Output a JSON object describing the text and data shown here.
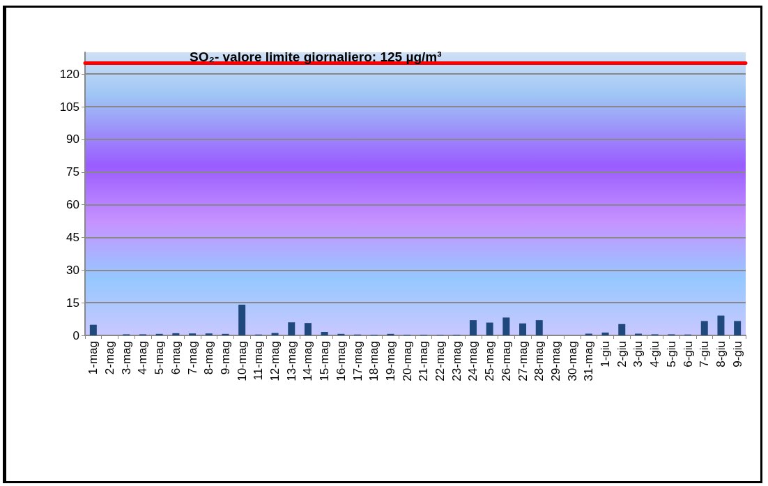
{
  "chart_data": {
    "type": "bar",
    "categories": [
      "1-mag",
      "2-mag",
      "3-mag",
      "4-mag",
      "5-mag",
      "6-mag",
      "7-mag",
      "8-mag",
      "9-mag",
      "10-mag",
      "11-mag",
      "12-mag",
      "13-mag",
      "14-mag",
      "15-mag",
      "16-mag",
      "17-mag",
      "18-mag",
      "19-mag",
      "20-mag",
      "21-mag",
      "22-mag",
      "23-mag",
      "24-mag",
      "25-mag",
      "26-mag",
      "27-mag",
      "28-mag",
      "29-mag",
      "30-mag",
      "31-mag",
      "1-giu",
      "2-giu",
      "3-giu",
      "4-giu",
      "5-giu",
      "6-giu",
      "7-giu",
      "8-giu",
      "9-giu"
    ],
    "series": [
      {
        "color": "#1f497d",
        "values": [
          4.9,
          0,
          0.5,
          0.5,
          0.7,
          1.0,
          0.9,
          0.9,
          0.7,
          14.1,
          0.4,
          1.1,
          6.0,
          5.7,
          1.6,
          0.7,
          0.4,
          0.3,
          0.7,
          0.3,
          0.3,
          0.2,
          0.3,
          7.0,
          5.9,
          8.2,
          5.5,
          7.0,
          0,
          0,
          0.8,
          1.3,
          5.2,
          0.8,
          0.5,
          0.5,
          0.4,
          6.6,
          9.1,
          6.6
        ]
      }
    ],
    "ylim": [
      0,
      130
    ],
    "yticks": [
      0,
      15,
      30,
      45,
      60,
      75,
      90,
      105,
      120
    ],
    "grid": "y",
    "ref_lines": [
      {
        "axis": "y",
        "value": 125,
        "label": "SO₂- valore limite giornaliero: 125 µg/m³",
        "color": "#ff0000"
      }
    ]
  }
}
